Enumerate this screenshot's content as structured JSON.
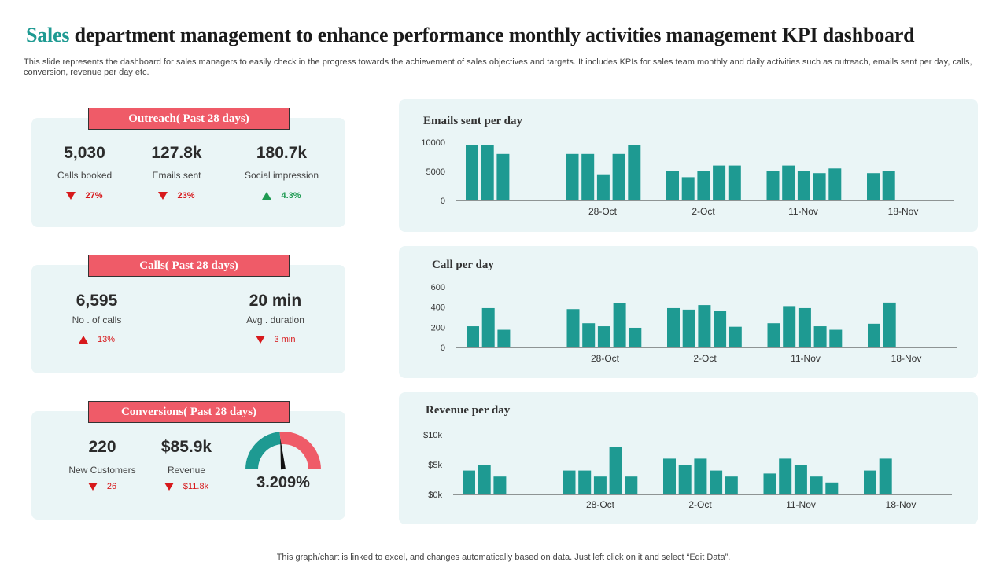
{
  "header": {
    "title_accent": "Sales",
    "title_rest": " department management to enhance performance monthly activities management KPI dashboard",
    "subtitle": "This slide represents the dashboard for sales managers to easily check in the progress towards the achievement of sales objectives and targets. It includes KPIs for sales team monthly and daily activities such as outreach, emails sent per day,  calls, conversion, revenue per day etc."
  },
  "outreach": {
    "banner": "Outreach( Past 28 days)",
    "kpis": [
      {
        "value": "5,030",
        "label": "Calls booked",
        "change": "27%",
        "direction": "down"
      },
      {
        "value": "127.8k",
        "label": "Emails sent",
        "change": "23%",
        "direction": "down"
      },
      {
        "value": "180.7k",
        "label": "Social impression",
        "change": "4.3%",
        "direction": "up"
      }
    ]
  },
  "calls": {
    "banner": "Calls( Past 28 days)",
    "kpis": [
      {
        "value": "6,595",
        "label": "No . of calls",
        "change": "13%",
        "direction": "up"
      },
      {
        "value": "20 min",
        "label": "Avg . duration",
        "change": "3 min",
        "direction": "down"
      }
    ]
  },
  "conversions": {
    "banner": "Conversions( Past 28 days)",
    "kpis": [
      {
        "value": "220",
        "label": "New Customers",
        "change": "26",
        "direction": "down"
      },
      {
        "value": "$85.9k",
        "label": "Revenue",
        "change": "$11.8k",
        "direction": "down"
      }
    ],
    "gauge": {
      "value_text": "3.209%",
      "fraction": 0.47
    }
  },
  "colors": {
    "bar": "#1e9a92",
    "banner": "#ef5b68",
    "panel": "#eaf5f6",
    "down": "#d7191c",
    "up": "#1e9a52"
  },
  "chart_data": [
    {
      "type": "bar",
      "title": "Emails  sent per day",
      "ylim": [
        0,
        10000
      ],
      "yticks": [
        "0",
        "5000",
        "10000"
      ],
      "xtick_labels": [
        "28-Oct",
        "2-Oct",
        "11-Nov",
        "18-Nov"
      ],
      "groups": [
        [
          9500,
          9500,
          8000
        ],
        [
          8000,
          8000,
          4500,
          8000,
          9500
        ],
        [
          5000,
          4000,
          5000,
          6000,
          6000
        ],
        [
          5000,
          6000,
          5000,
          4700,
          5500
        ],
        [
          4700,
          5000
        ]
      ]
    },
    {
      "type": "bar",
      "title": "Call per day",
      "ylim": [
        0,
        600
      ],
      "yticks": [
        "0",
        "200",
        "400",
        "600"
      ],
      "xtick_labels": [
        "28-Oct",
        "2-Oct",
        "11-Nov",
        "18-Nov"
      ],
      "groups": [
        [
          210,
          390,
          175
        ],
        [
          380,
          240,
          210,
          440,
          195
        ],
        [
          390,
          375,
          420,
          360,
          205
        ],
        [
          240,
          410,
          390,
          210,
          175
        ],
        [
          235,
          445
        ]
      ]
    },
    {
      "type": "bar",
      "title": "Revenue per day",
      "ylim": [
        0,
        10000
      ],
      "yticks": [
        "$0k",
        "$5k",
        "$10k"
      ],
      "xtick_labels": [
        "28-Oct",
        "2-Oct",
        "11-Nov",
        "18-Nov"
      ],
      "groups": [
        [
          4000,
          5000,
          3000
        ],
        [
          4000,
          4000,
          3000,
          8000,
          3000
        ],
        [
          6000,
          5000,
          6000,
          4000,
          3000
        ],
        [
          3500,
          6000,
          5000,
          3000,
          2000
        ],
        [
          4000,
          6000
        ]
      ]
    }
  ],
  "footer": "This graph/chart is linked to excel,  and changes automatically based on data. Just left click on it and select “Edit Data”."
}
